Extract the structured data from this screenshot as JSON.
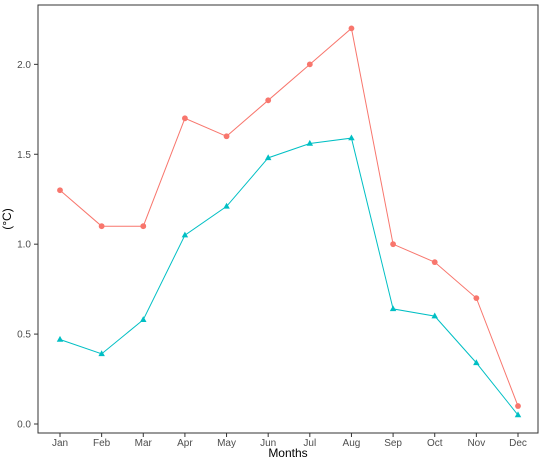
{
  "chart_data": {
    "type": "line",
    "title": "",
    "xlabel": "Months",
    "ylabel": "(°C)",
    "categories": [
      "Jan",
      "Feb",
      "Mar",
      "Apr",
      "May",
      "Jun",
      "Jul",
      "Aug",
      "Sep",
      "Oct",
      "Nov",
      "Dec"
    ],
    "y_ticks": [
      "0.0",
      "0.5",
      "1.0",
      "1.5",
      "2.0"
    ],
    "ylim": [
      -0.05,
      2.33
    ],
    "grid": false,
    "legend": "none",
    "series": [
      {
        "values": [
          1.3,
          1.1,
          1.1,
          1.7,
          1.6,
          1.8,
          2.0,
          2.2,
          1.0,
          0.9,
          0.7,
          0.1
        ],
        "color": "#F8766D",
        "marker": "circle"
      },
      {
        "values": [
          0.47,
          0.39,
          0.58,
          1.05,
          1.21,
          1.48,
          1.56,
          1.59,
          0.64,
          0.6,
          0.34,
          0.05
        ],
        "color": "#00BFC4",
        "marker": "triangle"
      }
    ]
  }
}
